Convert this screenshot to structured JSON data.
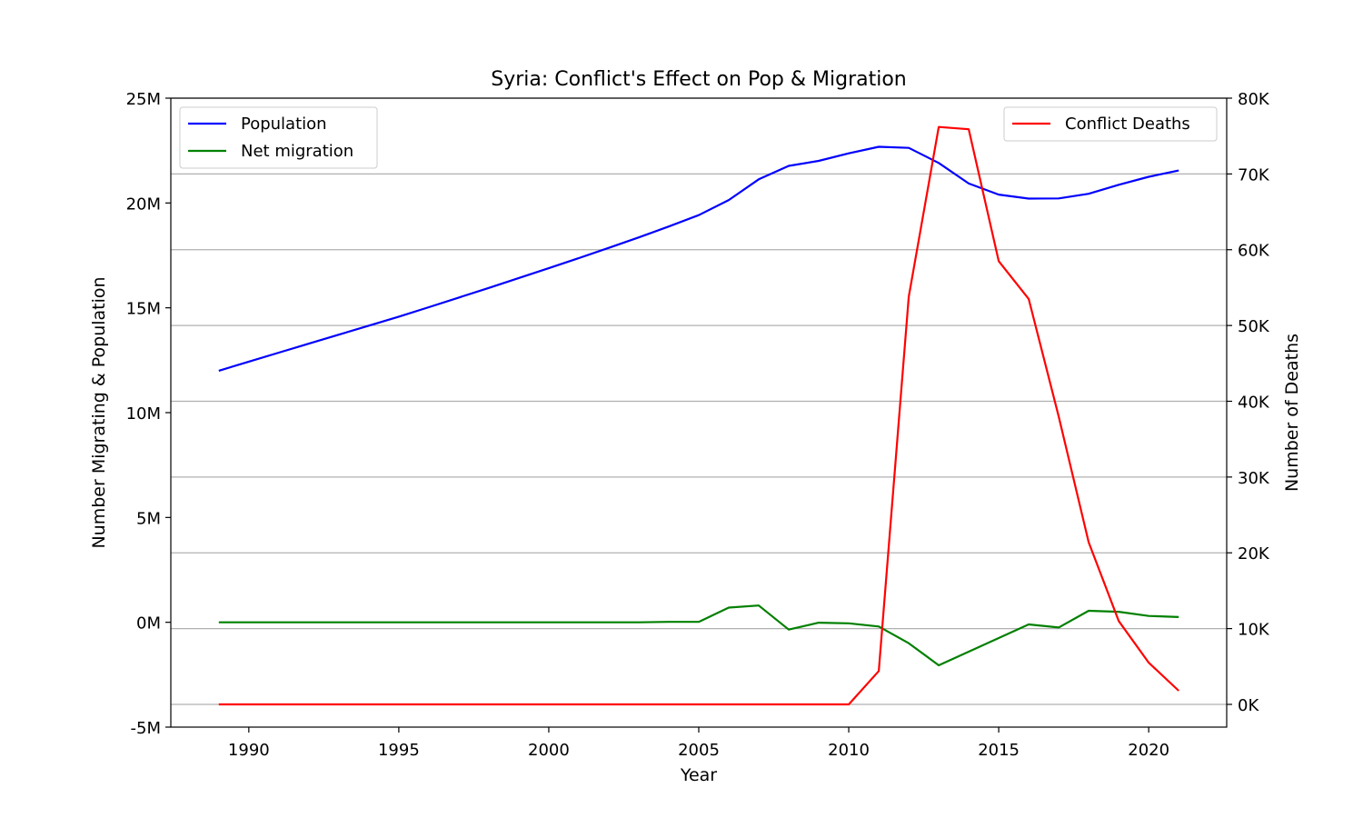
{
  "chart_data": {
    "type": "line",
    "title": "Syria: Conflict's Effect on Pop & Migration",
    "xlabel": "Year",
    "ylabel_left": "Number Migrating & Population",
    "ylabel_right": "Number of Deaths",
    "xlim": [
      1987.4,
      2022.6
    ],
    "ylim_left": [
      -5000000,
      25000000
    ],
    "ylim_right": [
      -3000,
      80000
    ],
    "x_ticks": [
      1990,
      1995,
      2000,
      2005,
      2010,
      2015,
      2020
    ],
    "x_tick_labels": [
      "1990",
      "1995",
      "2000",
      "2005",
      "2010",
      "2015",
      "2020"
    ],
    "y_left_ticks": [
      -5000000,
      0,
      5000000,
      10000000,
      15000000,
      20000000,
      25000000
    ],
    "y_left_tick_labels": [
      "-5M",
      "0M",
      "5M",
      "10M",
      "15M",
      "20M",
      "25M"
    ],
    "y_right_ticks": [
      0,
      10000,
      20000,
      30000,
      40000,
      50000,
      60000,
      70000,
      80000
    ],
    "y_right_tick_labels": [
      "0K",
      "10K",
      "20K",
      "30K",
      "40K",
      "50K",
      "60K",
      "70K",
      "80K"
    ],
    "grid": "horizontal lines at right-axis ticks",
    "legend_left_placement": "upper left",
    "legend_right_placement": "upper right",
    "x": [
      1989,
      1990,
      1991,
      1992,
      1993,
      1994,
      1995,
      1996,
      1997,
      1998,
      1999,
      2000,
      2001,
      2002,
      2003,
      2004,
      2005,
      2006,
      2007,
      2008,
      2009,
      2010,
      2011,
      2012,
      2013,
      2014,
      2015,
      2016,
      2017,
      2018,
      2019,
      2020,
      2021
    ],
    "series": [
      {
        "name": "Population",
        "axis": "left",
        "color": "#0000ff",
        "values": [
          12000000,
          12430000,
          12860000,
          13290000,
          13720000,
          14150000,
          14580000,
          15030000,
          15490000,
          15950000,
          16420000,
          16890000,
          17370000,
          17860000,
          18360000,
          18880000,
          19420000,
          20140000,
          21130000,
          21770000,
          22010000,
          22370000,
          22680000,
          22630000,
          21910000,
          20930000,
          20400000,
          20210000,
          20220000,
          20440000,
          20870000,
          21250000,
          21550000
        ]
      },
      {
        "name": "Net migration",
        "axis": "left",
        "color": "#008000",
        "values": [
          0,
          0,
          0,
          0,
          0,
          0,
          0,
          0,
          0,
          0,
          0,
          0,
          0,
          0,
          0,
          20000,
          20000,
          700000,
          800000,
          -350000,
          -20000,
          -50000,
          -200000,
          -1000000,
          -2050000,
          -1400000,
          -750000,
          -100000,
          -250000,
          550000,
          500000,
          300000,
          250000
        ]
      },
      {
        "name": "Conflict Deaths",
        "axis": "right",
        "color": "#ff0000",
        "values": [
          0,
          0,
          0,
          0,
          0,
          0,
          0,
          0,
          0,
          0,
          0,
          0,
          0,
          0,
          0,
          0,
          0,
          0,
          0,
          0,
          0,
          0,
          4400,
          53800,
          76200,
          75900,
          58500,
          53500,
          38000,
          21400,
          11000,
          5500,
          1800
        ]
      }
    ]
  }
}
